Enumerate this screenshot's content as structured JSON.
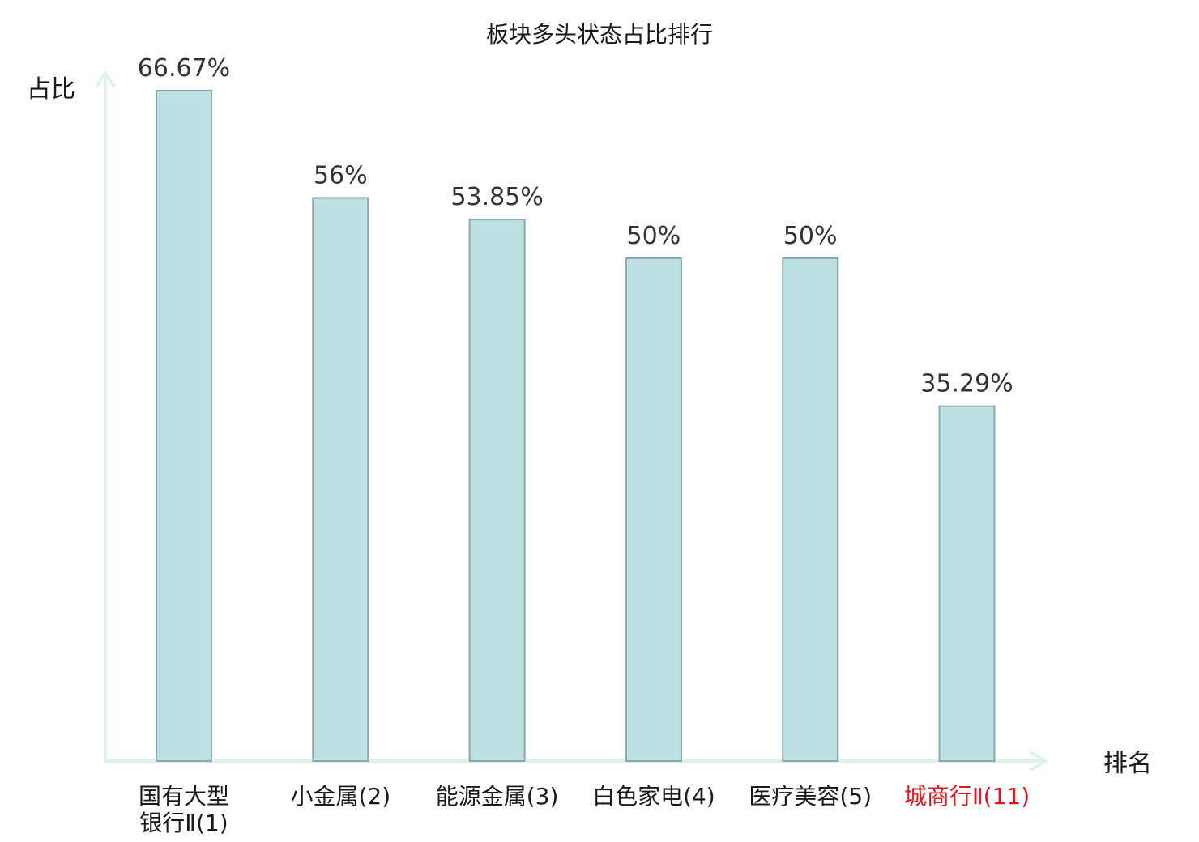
{
  "chart_data": {
    "type": "bar",
    "title": "板块多头状态占比排行",
    "xlabel": "排名",
    "ylabel": "占比",
    "categories": [
      [
        "国有大型",
        "银行Ⅱ(1)"
      ],
      [
        "小金属(2)"
      ],
      [
        "能源金属(3)"
      ],
      [
        "白色家电(4)"
      ],
      [
        "医疗美容(5)"
      ],
      [
        "城商行Ⅱ(11)"
      ]
    ],
    "values": [
      66.67,
      56,
      53.85,
      50,
      50,
      35.29
    ],
    "value_labels": [
      "66.67%",
      "56%",
      "53.85%",
      "50%",
      "50%",
      "35.29%"
    ],
    "highlight_index": 5,
    "ylim": [
      0,
      70
    ],
    "grid": false,
    "colors": {
      "bar_fill": "#bde0e3",
      "bar_stroke": "#8aa8ab",
      "axis": "#dff1ee",
      "text": "#1a1a1a",
      "highlight_text": "#e0141b"
    }
  }
}
